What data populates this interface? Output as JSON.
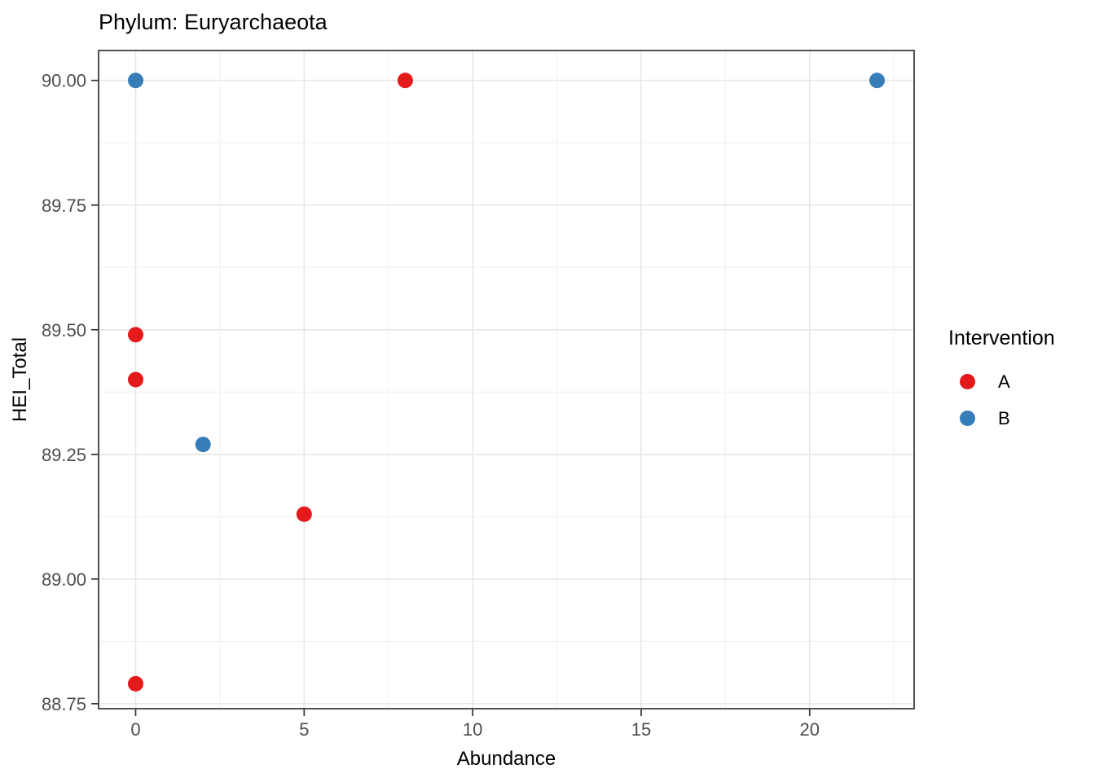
{
  "title": "Phylum: Euryarchaeota",
  "chart_data": {
    "type": "scatter",
    "title": "Phylum: Euryarchaeota",
    "xlabel": "Abundance",
    "ylabel": "HEI_Total",
    "xlim": [
      -1.1,
      23.1
    ],
    "ylim": [
      88.74,
      90.06
    ],
    "x_ticks": [
      0,
      5,
      10,
      15,
      20
    ],
    "y_ticks": [
      88.75,
      89.0,
      89.25,
      89.5,
      89.75,
      90.0
    ],
    "x_minor_gridlines": [
      2.5,
      7.5,
      12.5,
      17.5,
      22.5
    ],
    "y_minor_gridlines": [
      88.875,
      89.125,
      89.375,
      89.625,
      89.875
    ],
    "grid": true,
    "legend": {
      "title": "Intervention",
      "position": "right"
    },
    "series": [
      {
        "name": "A",
        "color": "#E41A1C",
        "points": [
          [
            0,
            88.79
          ],
          [
            0,
            89.4
          ],
          [
            0,
            89.49
          ],
          [
            5,
            89.13
          ],
          [
            8,
            90.0
          ]
        ]
      },
      {
        "name": "B",
        "color": "#377EB8",
        "points": [
          [
            0,
            90.0
          ],
          [
            2,
            89.27
          ],
          [
            22,
            90.0
          ]
        ]
      }
    ]
  },
  "style_colors": {
    "panel_border": "#333333",
    "major_grid": "#e7e7e7",
    "minor_grid": "#f0f0f0",
    "tick_mark": "#333333",
    "tick_label": "#4d4d4d",
    "axis_title": "#000000"
  }
}
